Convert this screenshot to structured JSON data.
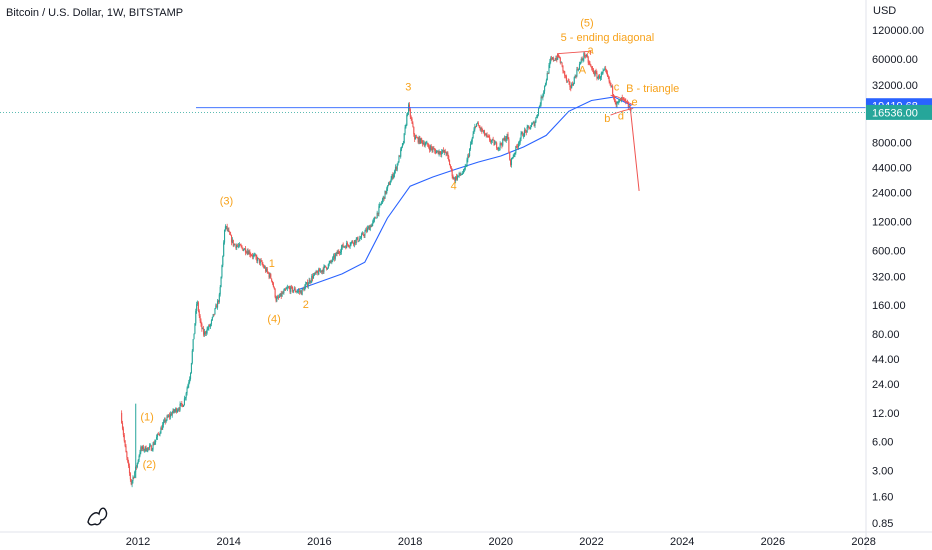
{
  "header": {
    "symbol": "Bitcoin / U.S. Dollar, 1W, BITSTAMP"
  },
  "colors": {
    "up": "#26a69a",
    "down": "#ef5350",
    "wave": "#f7a21b",
    "ma": "#2962ff",
    "support": "#2962ff",
    "projection": "#ef5350",
    "tag_blue": "#2962ff",
    "tag_green": "#26a69a"
  },
  "icons": {
    "logo": "tradingview-dino-icon"
  },
  "chart_data": {
    "type": "candlestick",
    "title": "",
    "xlabel": "",
    "ylabel": "USD",
    "scale": "log",
    "ylim": [
      0.6,
      200000
    ],
    "xlim": [
      2011.4,
      2027.9
    ],
    "grid": false,
    "x_ticks": [
      "2012",
      "2014",
      "2016",
      "2018",
      "2020",
      "2022",
      "2024",
      "2026",
      "2028"
    ],
    "y_ticks": [
      "120000.00",
      "60000.00",
      "32000.00",
      "8000.00",
      "4400.00",
      "2400.00",
      "1200.00",
      "600.00",
      "320.00",
      "160.00",
      "80.00",
      "44.00",
      "24.00",
      "12.00",
      "6.00",
      "3.00",
      "1.60",
      "0.85"
    ],
    "price_tags": [
      {
        "label": "19419.68",
        "value": 19419.68,
        "color": "blue"
      },
      {
        "label": "16536.00",
        "value": 16536.0,
        "color": "green"
      }
    ],
    "support_line": {
      "value": 18500
    },
    "price_path": [
      {
        "t": 2011.62,
        "p": 12
      },
      {
        "t": 2011.72,
        "p": 5
      },
      {
        "t": 2011.85,
        "p": 2.2
      },
      {
        "t": 2011.98,
        "p": 3.5
      },
      {
        "t": 2012.05,
        "p": 5
      },
      {
        "t": 2012.3,
        "p": 5.2
      },
      {
        "t": 2012.6,
        "p": 10
      },
      {
        "t": 2012.75,
        "p": 12
      },
      {
        "t": 2013.0,
        "p": 15
      },
      {
        "t": 2013.15,
        "p": 30
      },
      {
        "t": 2013.3,
        "p": 180
      },
      {
        "t": 2013.38,
        "p": 100
      },
      {
        "t": 2013.45,
        "p": 80
      },
      {
        "t": 2013.6,
        "p": 100
      },
      {
        "t": 2013.8,
        "p": 200
      },
      {
        "t": 2013.92,
        "p": 1100
      },
      {
        "t": 2014.1,
        "p": 700
      },
      {
        "t": 2014.4,
        "p": 600
      },
      {
        "t": 2014.7,
        "p": 450
      },
      {
        "t": 2014.95,
        "p": 300
      },
      {
        "t": 2015.05,
        "p": 180
      },
      {
        "t": 2015.3,
        "p": 240
      },
      {
        "t": 2015.6,
        "p": 220
      },
      {
        "t": 2015.85,
        "p": 320
      },
      {
        "t": 2016.2,
        "p": 420
      },
      {
        "t": 2016.5,
        "p": 650
      },
      {
        "t": 2016.9,
        "p": 800
      },
      {
        "t": 2017.2,
        "p": 1200
      },
      {
        "t": 2017.5,
        "p": 2700
      },
      {
        "t": 2017.7,
        "p": 4500
      },
      {
        "t": 2017.85,
        "p": 8000
      },
      {
        "t": 2017.96,
        "p": 19500
      },
      {
        "t": 2018.1,
        "p": 9000
      },
      {
        "t": 2018.3,
        "p": 8000
      },
      {
        "t": 2018.55,
        "p": 6500
      },
      {
        "t": 2018.8,
        "p": 6300
      },
      {
        "t": 2018.96,
        "p": 3300
      },
      {
        "t": 2019.2,
        "p": 4000
      },
      {
        "t": 2019.45,
        "p": 12800
      },
      {
        "t": 2019.7,
        "p": 9000
      },
      {
        "t": 2019.95,
        "p": 7200
      },
      {
        "t": 2020.15,
        "p": 9500
      },
      {
        "t": 2020.2,
        "p": 4800
      },
      {
        "t": 2020.45,
        "p": 9500
      },
      {
        "t": 2020.75,
        "p": 13000
      },
      {
        "t": 2020.95,
        "p": 29000
      },
      {
        "t": 2021.1,
        "p": 58000
      },
      {
        "t": 2021.28,
        "p": 63000
      },
      {
        "t": 2021.45,
        "p": 35000
      },
      {
        "t": 2021.55,
        "p": 30000
      },
      {
        "t": 2021.7,
        "p": 48000
      },
      {
        "t": 2021.85,
        "p": 68000
      },
      {
        "t": 2022.0,
        "p": 47000
      },
      {
        "t": 2022.15,
        "p": 38000
      },
      {
        "t": 2022.3,
        "p": 45000
      },
      {
        "t": 2022.45,
        "p": 29000
      },
      {
        "t": 2022.55,
        "p": 20000
      },
      {
        "t": 2022.68,
        "p": 23000
      },
      {
        "t": 2022.8,
        "p": 19500
      },
      {
        "t": 2022.88,
        "p": 16536
      }
    ],
    "moving_average": [
      {
        "t": 2015.5,
        "p": 230
      },
      {
        "t": 2016.0,
        "p": 280
      },
      {
        "t": 2016.5,
        "p": 340
      },
      {
        "t": 2017.0,
        "p": 450
      },
      {
        "t": 2017.5,
        "p": 1300
      },
      {
        "t": 2018.0,
        "p": 2800
      },
      {
        "t": 2018.5,
        "p": 3500
      },
      {
        "t": 2019.0,
        "p": 4200
      },
      {
        "t": 2019.5,
        "p": 5000
      },
      {
        "t": 2020.0,
        "p": 5800
      },
      {
        "t": 2020.5,
        "p": 7200
      },
      {
        "t": 2021.0,
        "p": 9500
      },
      {
        "t": 2021.5,
        "p": 17000
      },
      {
        "t": 2022.0,
        "p": 22000
      },
      {
        "t": 2022.5,
        "p": 24000
      },
      {
        "t": 2022.88,
        "p": 19500
      }
    ],
    "projection": [
      {
        "t": 2022.85,
        "p": 19500
      },
      {
        "t": 2023.05,
        "p": 2500
      }
    ],
    "wave_labels": [
      {
        "text": "(1)",
        "t": 2012.2,
        "p": 10
      },
      {
        "text": "(2)",
        "t": 2012.25,
        "p": 3.2
      },
      {
        "text": "(3)",
        "t": 2013.95,
        "p": 1800
      },
      {
        "text": "(4)",
        "t": 2015.0,
        "p": 105
      },
      {
        "text": "1",
        "t": 2014.95,
        "p": 400
      },
      {
        "text": "2",
        "t": 2015.7,
        "p": 150
      },
      {
        "text": "3",
        "t": 2017.96,
        "p": 28000
      },
      {
        "text": "4",
        "t": 2018.96,
        "p": 2600
      },
      {
        "text": "(5)",
        "t": 2021.9,
        "p": 130000
      },
      {
        "text": "5 - ending diagonal",
        "t": 2022.35,
        "p": 92000
      },
      {
        "text": "a",
        "t": 2021.98,
        "p": 68000
      },
      {
        "text": "A",
        "t": 2021.8,
        "p": 42000
      },
      {
        "text": "c",
        "t": 2022.55,
        "p": 28000
      },
      {
        "text": "B - triangle",
        "t": 2023.35,
        "p": 27000
      },
      {
        "text": "e",
        "t": 2022.95,
        "p": 19500
      },
      {
        "text": "b",
        "t": 2022.35,
        "p": 13200
      },
      {
        "text": "d",
        "t": 2022.65,
        "p": 14000
      }
    ]
  }
}
